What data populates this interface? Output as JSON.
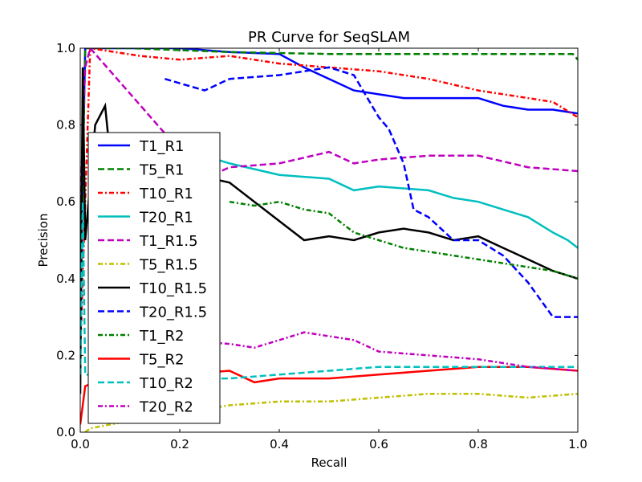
{
  "chart_data": {
    "type": "line",
    "title": "PR Curve for SeqSLAM",
    "xlabel": "Recall",
    "ylabel": "Precision",
    "xlim": [
      0,
      1
    ],
    "ylim": [
      0,
      1
    ],
    "xticks": [
      "0.0",
      "0.2",
      "0.4",
      "0.6",
      "0.8",
      "1.0"
    ],
    "yticks": [
      "0.0",
      "0.2",
      "0.4",
      "0.6",
      "0.8",
      "1.0"
    ],
    "grid": false,
    "legend_position": "center-left",
    "series": [
      {
        "name": "T1_R1",
        "color": "#0000ff",
        "style": "solid",
        "x": [
          0,
          0.005,
          0.01,
          0.2,
          0.3,
          0.4,
          0.45,
          0.5,
          0.55,
          0.6,
          0.65,
          0.7,
          0.8,
          0.85,
          0.9,
          0.95,
          1.0
        ],
        "y": [
          0.2,
          0.7,
          1.0,
          1.0,
          0.99,
          0.985,
          0.95,
          0.92,
          0.89,
          0.88,
          0.87,
          0.87,
          0.87,
          0.85,
          0.84,
          0.84,
          0.83
        ]
      },
      {
        "name": "T5_R1",
        "color": "#008000",
        "style": "dashed",
        "x": [
          0,
          0.01,
          0.1,
          0.3,
          0.5,
          0.7,
          0.9,
          0.99,
          1.0
        ],
        "y": [
          0.3,
          1.0,
          1.0,
          0.99,
          0.985,
          0.985,
          0.985,
          0.985,
          0.97
        ]
      },
      {
        "name": "T10_R1",
        "color": "#ff0000",
        "style": "dashdot",
        "x": [
          0,
          0.02,
          0.12,
          0.2,
          0.3,
          0.4,
          0.5,
          0.6,
          0.7,
          0.8,
          0.9,
          0.95,
          1.0
        ],
        "y": [
          0.2,
          1.0,
          0.98,
          0.97,
          0.98,
          0.96,
          0.95,
          0.94,
          0.92,
          0.89,
          0.87,
          0.86,
          0.82
        ]
      },
      {
        "name": "T20_R1",
        "color": "#00bfbf",
        "style": "solid",
        "x": [
          0.25,
          0.3,
          0.4,
          0.5,
          0.55,
          0.6,
          0.7,
          0.75,
          0.8,
          0.85,
          0.9,
          0.95,
          0.98,
          1.0
        ],
        "y": [
          0.72,
          0.7,
          0.67,
          0.66,
          0.63,
          0.64,
          0.63,
          0.61,
          0.6,
          0.58,
          0.56,
          0.52,
          0.5,
          0.48
        ]
      },
      {
        "name": "T1_R1.5",
        "color": "#bf00bf",
        "style": "dashed",
        "x": [
          0,
          0.005,
          0.01,
          0.02,
          0.25,
          0.3,
          0.4,
          0.5,
          0.55,
          0.6,
          0.7,
          0.8,
          0.9,
          1.0
        ],
        "y": [
          0.5,
          0.8,
          0.95,
          1.0,
          0.66,
          0.69,
          0.7,
          0.73,
          0.7,
          0.71,
          0.72,
          0.72,
          0.69,
          0.68
        ]
      },
      {
        "name": "T5_R1.5",
        "color": "#bfbf00",
        "style": "dashdot",
        "x": [
          0.01,
          0.02,
          0.1,
          0.2,
          0.3,
          0.4,
          0.5,
          0.6,
          0.7,
          0.8,
          0.9,
          1.0
        ],
        "y": [
          0.0,
          0.01,
          0.03,
          0.05,
          0.07,
          0.08,
          0.08,
          0.09,
          0.1,
          0.1,
          0.09,
          0.1
        ]
      },
      {
        "name": "T10_R1.5",
        "color": "#000000",
        "style": "solid",
        "x": [
          0,
          0.005,
          0.01,
          0.03,
          0.05,
          0.06,
          0.3,
          0.35,
          0.4,
          0.45,
          0.5,
          0.55,
          0.6,
          0.65,
          0.7,
          0.75,
          0.8,
          0.85,
          0.9,
          0.95,
          1.0
        ],
        "y": [
          0.1,
          0.95,
          0.5,
          0.8,
          0.85,
          0.72,
          0.65,
          0.6,
          0.55,
          0.5,
          0.51,
          0.5,
          0.52,
          0.53,
          0.52,
          0.5,
          0.51,
          0.48,
          0.45,
          0.42,
          0.4
        ]
      },
      {
        "name": "T20_R1.5",
        "color": "#0000ff",
        "style": "dashed",
        "x": [
          0.17,
          0.25,
          0.3,
          0.4,
          0.5,
          0.55,
          0.6,
          0.62,
          0.65,
          0.67,
          0.7,
          0.75,
          0.8,
          0.85,
          0.9,
          0.95,
          1.0
        ],
        "y": [
          0.92,
          0.89,
          0.92,
          0.93,
          0.95,
          0.93,
          0.82,
          0.79,
          0.7,
          0.58,
          0.56,
          0.5,
          0.5,
          0.46,
          0.39,
          0.3,
          0.3
        ]
      },
      {
        "name": "T1_R2",
        "color": "#008000",
        "style": "dashdot",
        "x": [
          0.3,
          0.35,
          0.4,
          0.45,
          0.5,
          0.55,
          0.6,
          0.65,
          0.7,
          0.75,
          0.8,
          0.85,
          0.9,
          0.95,
          1.0
        ],
        "y": [
          0.6,
          0.59,
          0.6,
          0.58,
          0.57,
          0.52,
          0.5,
          0.48,
          0.47,
          0.46,
          0.45,
          0.44,
          0.43,
          0.42,
          0.4
        ]
      },
      {
        "name": "T5_R2",
        "color": "#ff0000",
        "style": "solid",
        "x": [
          0,
          0.01,
          0.05,
          0.1,
          0.2,
          0.3,
          0.35,
          0.4,
          0.5,
          0.6,
          0.7,
          0.8,
          0.9,
          1.0
        ],
        "y": [
          0.02,
          0.12,
          0.14,
          0.15,
          0.15,
          0.16,
          0.13,
          0.14,
          0.14,
          0.15,
          0.16,
          0.17,
          0.17,
          0.16
        ]
      },
      {
        "name": "T10_R2",
        "color": "#00bfbf",
        "style": "dashed",
        "x": [
          0.0,
          0.005,
          0.01,
          0.2,
          0.3,
          0.4,
          0.5,
          0.6,
          0.7,
          0.8,
          0.9,
          1.0
        ],
        "y": [
          0.15,
          0.6,
          0.15,
          0.14,
          0.14,
          0.15,
          0.16,
          0.17,
          0.17,
          0.17,
          0.17,
          0.17
        ]
      },
      {
        "name": "T20_R2",
        "color": "#bf00bf",
        "style": "dashdot",
        "x": [
          0.2,
          0.3,
          0.35,
          0.4,
          0.45,
          0.5,
          0.55,
          0.6,
          0.7,
          0.8,
          0.9,
          1.0
        ],
        "y": [
          0.24,
          0.23,
          0.22,
          0.24,
          0.26,
          0.25,
          0.24,
          0.21,
          0.2,
          0.19,
          0.17,
          0.16
        ]
      }
    ]
  }
}
